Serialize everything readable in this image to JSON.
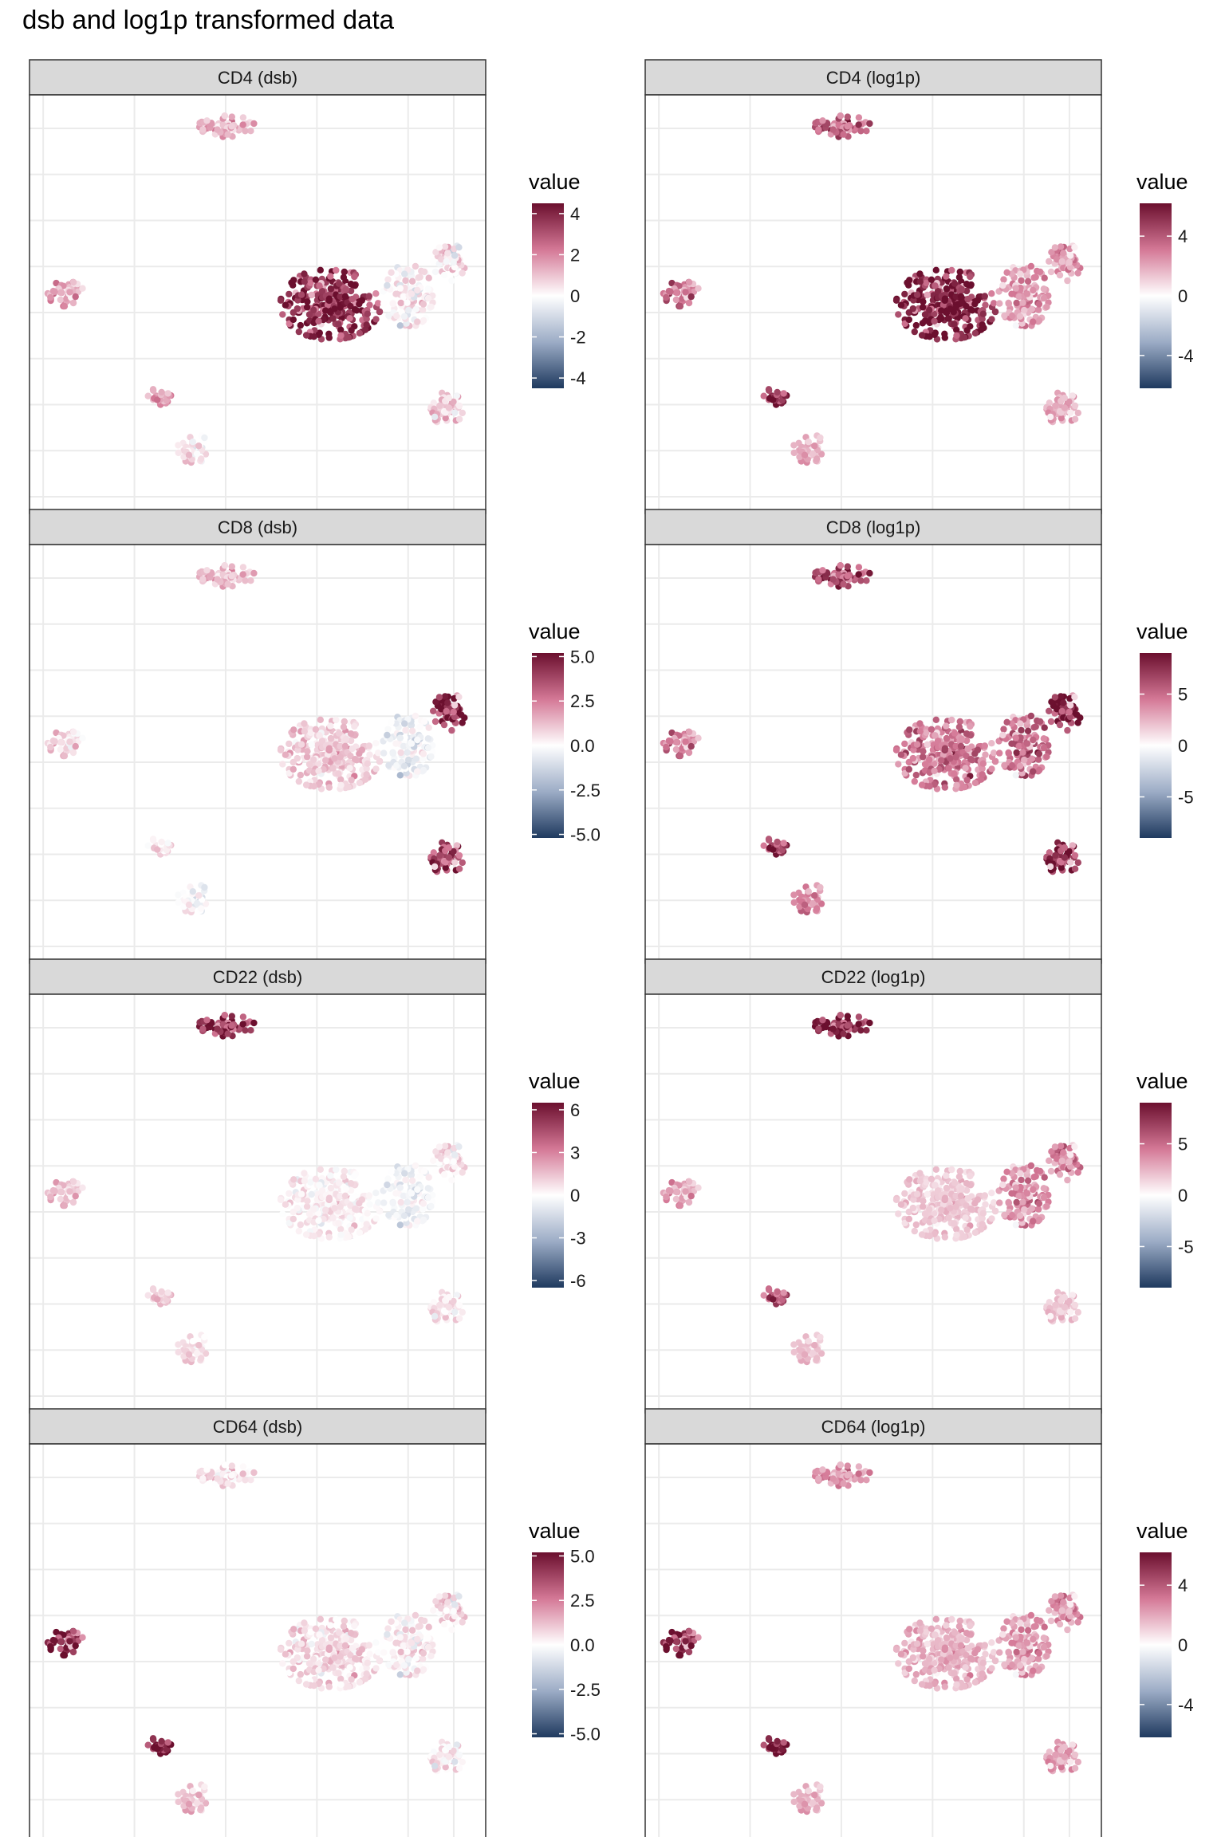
{
  "figure": {
    "title": "dsb and log1p transformed data",
    "legend_title": "value"
  },
  "colors": {
    "low": "#1f3a5f",
    "mid": "#ffffff",
    "high": "#6b0f2e",
    "strip_fill": "#d9d9d9",
    "grid": "#ebebeb",
    "panel_border": "#333333"
  },
  "chart_data": [
    {
      "type": "scatter",
      "panel": "CD4 (dsb)",
      "legend_breaks": [
        4,
        2,
        0,
        -2,
        -4
      ],
      "legend_break_labels": [
        "4",
        "2",
        "0",
        "-2",
        "-4"
      ],
      "color_limits": [
        -4.5,
        4.5
      ],
      "cluster_values": {
        "top": 1.2,
        "left": 1.5,
        "center_left": 3.8,
        "center_right": 0.3,
        "right_top": 0.4,
        "bottom_left_small": 1.5,
        "bottom_mid": 0.2,
        "bottom_right": 0.8
      }
    },
    {
      "type": "scatter",
      "panel": "CD4 (log1p)",
      "legend_breaks": [
        4,
        0,
        -4
      ],
      "legend_break_labels": [
        "4",
        "0",
        "-4"
      ],
      "color_limits": [
        -6.2,
        6.2
      ],
      "cluster_values": {
        "top": 3.5,
        "left": 3.2,
        "center_left": 5.8,
        "center_right": 2.4,
        "right_top": 2.2,
        "bottom_left_small": 5.0,
        "bottom_mid": 1.6,
        "bottom_right": 1.8
      }
    },
    {
      "type": "scatter",
      "panel": "CD8 (dsb)",
      "legend_breaks": [
        5.0,
        2.5,
        0.0,
        -2.5,
        -5.0
      ],
      "legend_break_labels": [
        "5.0",
        "2.5",
        "0.0",
        "-2.5",
        "-5.0"
      ],
      "color_limits": [
        -5.2,
        5.2
      ],
      "cluster_values": {
        "top": 1.2,
        "left": 0.8,
        "center_left": 1.0,
        "center_right": -0.3,
        "right_top": 4.5,
        "bottom_left_small": 0.4,
        "bottom_mid": -0.3,
        "bottom_right": 3.5
      }
    },
    {
      "type": "scatter",
      "panel": "CD8 (log1p)",
      "legend_breaks": [
        5,
        0,
        -5
      ],
      "legend_break_labels": [
        "5",
        "0",
        "-5"
      ],
      "color_limits": [
        -9,
        9
      ],
      "cluster_values": {
        "top": 6.0,
        "left": 4.2,
        "center_left": 4.5,
        "center_right": 5.0,
        "right_top": 8.0,
        "bottom_left_small": 6.5,
        "bottom_mid": 3.5,
        "bottom_right": 7.0
      }
    },
    {
      "type": "scatter",
      "panel": "CD22 (dsb)",
      "legend_breaks": [
        6,
        3,
        0,
        -3,
        -6
      ],
      "legend_break_labels": [
        "6",
        "3",
        "0",
        "-3",
        "-6"
      ],
      "color_limits": [
        -6.5,
        6.5
      ],
      "cluster_values": {
        "top": 5.0,
        "left": 1.5,
        "center_left": 0.4,
        "center_right": -0.3,
        "right_top": 0.6,
        "bottom_left_small": 1.2,
        "bottom_mid": 0.6,
        "bottom_right": 0.6
      }
    },
    {
      "type": "scatter",
      "panel": "CD22 (log1p)",
      "legend_breaks": [
        5,
        0,
        -5
      ],
      "legend_break_labels": [
        "5",
        "0",
        "-5"
      ],
      "color_limits": [
        -9,
        9
      ],
      "cluster_values": {
        "top": 8.0,
        "left": 3.0,
        "center_left": 1.8,
        "center_right": 3.8,
        "right_top": 3.8,
        "bottom_left_small": 5.5,
        "bottom_mid": 1.8,
        "bottom_right": 1.8
      }
    },
    {
      "type": "scatter",
      "panel": "CD64 (dsb)",
      "legend_breaks": [
        5.0,
        2.5,
        0.0,
        -2.5,
        -5.0
      ],
      "legend_break_labels": [
        "5.0",
        "2.5",
        "0.0",
        "-2.5",
        "-5.0"
      ],
      "color_limits": [
        -5.2,
        5.2
      ],
      "cluster_values": {
        "top": 0.5,
        "left": 4.6,
        "center_left": 0.7,
        "center_right": 0.4,
        "right_top": 0.6,
        "bottom_left_small": 4.8,
        "bottom_mid": 0.9,
        "bottom_right": 0.3
      }
    },
    {
      "type": "scatter",
      "panel": "CD64 (log1p)",
      "legend_breaks": [
        4,
        0,
        -4
      ],
      "legend_break_labels": [
        "4",
        "0",
        "-4"
      ],
      "color_limits": [
        -6.2,
        6.2
      ],
      "cluster_values": {
        "top": 2.3,
        "left": 5.4,
        "center_left": 1.7,
        "center_right": 2.3,
        "right_top": 2.3,
        "bottom_left_small": 6.0,
        "bottom_mid": 1.5,
        "bottom_right": 2.0
      }
    }
  ]
}
